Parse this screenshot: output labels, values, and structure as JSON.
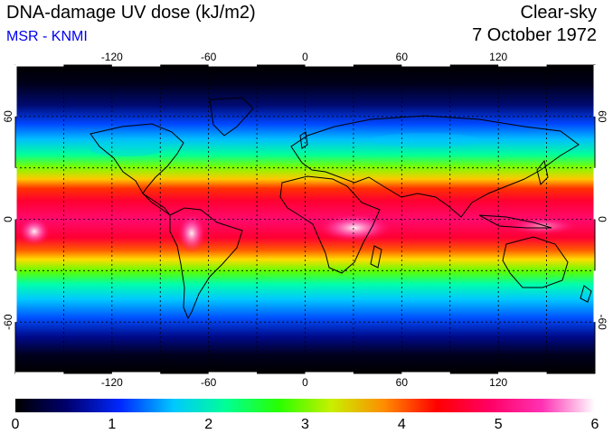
{
  "header": {
    "title": "DNA-damage UV dose (kJ/m2)",
    "subtitle": "MSR - KNMI",
    "condition": "Clear-sky",
    "date": "7 October 1972"
  },
  "map": {
    "lon_range": [
      -180,
      180
    ],
    "lat_range": [
      -90,
      90
    ],
    "grid_lon": [
      -150,
      -120,
      -90,
      -60,
      -30,
      0,
      30,
      60,
      90,
      120,
      150
    ],
    "grid_lat": [
      -60,
      -30,
      0,
      30,
      60
    ],
    "lon_labels": [
      "-120",
      "-60",
      "0",
      "60",
      "120"
    ],
    "lat_labels": [
      "60",
      "0",
      "-60"
    ]
  },
  "colorbar": {
    "min": 0,
    "max": 6,
    "tick_labels": [
      "0",
      "1",
      "2",
      "3",
      "4",
      "5",
      "6"
    ],
    "colors": [
      "#000000",
      "#000070",
      "#0028ff",
      "#00c8ff",
      "#00ff96",
      "#28ff00",
      "#c8f000",
      "#ff8c00",
      "#ff0000",
      "#ff0064",
      "#ff32b4",
      "#ffffff"
    ]
  }
}
